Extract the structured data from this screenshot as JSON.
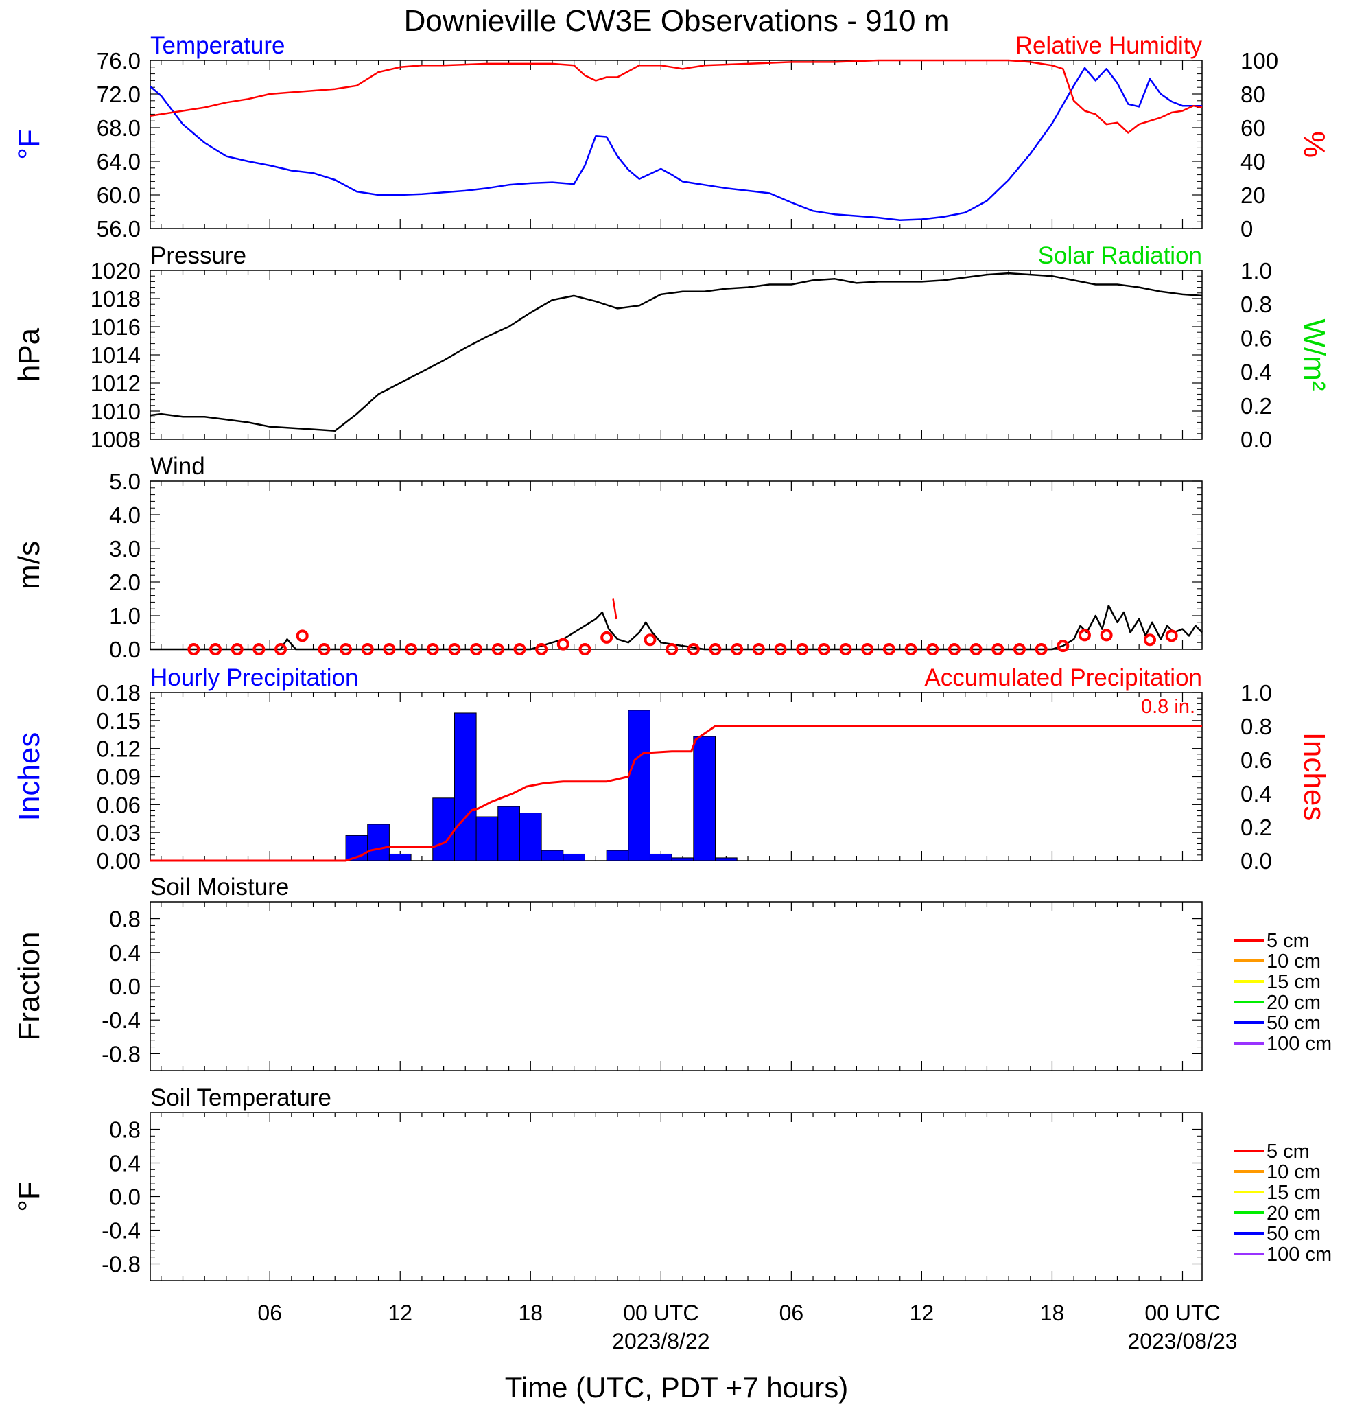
{
  "title": "Downieville CW3E Observations - 910 m",
  "xlabel": "Time (UTC, PDT +7 hours)",
  "x_ticks": [
    {
      "h": 6,
      "label": "06",
      "sub": ""
    },
    {
      "h": 12,
      "label": "12",
      "sub": ""
    },
    {
      "h": 18,
      "label": "18",
      "sub": ""
    },
    {
      "h": 24,
      "label": "00 UTC",
      "sub": "2023/8/22"
    },
    {
      "h": 30,
      "label": "06",
      "sub": ""
    },
    {
      "h": 36,
      "label": "12",
      "sub": ""
    },
    {
      "h": 42,
      "label": "18",
      "sub": ""
    },
    {
      "h": 48,
      "label": "00 UTC",
      "sub": "2023/08/23"
    }
  ],
  "colors": {
    "temperature": "#0000ff",
    "humidity": "#ff0000",
    "pressure": "#000000",
    "solar": "#00dd00",
    "wind": "#000000",
    "gust_marker": "#ff0000",
    "precip_bar": "#0000ff",
    "accum": "#ff0000"
  },
  "chart_data": [
    {
      "type": "line",
      "panel": "temperature-humidity",
      "left_title": "Temperature",
      "right_title": "Relative Humidity",
      "ylabel_left": "°F",
      "ylabel_right": "%",
      "xlim": [
        0.5,
        48.9
      ],
      "ylim_left": [
        56,
        76
      ],
      "ylim_right": [
        0,
        100
      ],
      "yticks_left": [
        "56.0",
        "60.0",
        "64.0",
        "68.0",
        "72.0",
        "76.0"
      ],
      "yticks_right": [
        "0",
        "20",
        "40",
        "60",
        "80",
        "100"
      ],
      "series": [
        {
          "name": "Temperature",
          "axis": "left",
          "x": [
            0.5,
            1,
            2,
            3,
            4,
            5,
            6,
            7,
            8,
            9,
            10,
            11,
            12,
            13,
            14,
            15,
            16,
            17,
            18,
            19,
            20,
            20.5,
            21,
            21.5,
            22,
            22.5,
            23,
            23.5,
            24,
            24.5,
            25,
            26,
            27,
            28,
            29,
            30,
            31,
            32,
            33,
            34,
            35,
            36,
            37,
            38,
            39,
            40,
            41,
            42,
            43,
            43.5,
            44,
            44.5,
            45,
            45.5,
            46,
            46.5,
            47,
            47.5,
            48,
            48.5,
            48.9
          ],
          "y": [
            72.9,
            71.8,
            68.4,
            66.2,
            64.6,
            64.0,
            63.5,
            62.9,
            62.6,
            61.8,
            60.4,
            60.0,
            60.0,
            60.1,
            60.3,
            60.5,
            60.8,
            61.2,
            61.4,
            61.5,
            61.3,
            63.5,
            67.0,
            66.9,
            64.6,
            63.0,
            61.9,
            62.5,
            63.1,
            62.4,
            61.6,
            61.2,
            60.8,
            60.5,
            60.2,
            59.1,
            58.1,
            57.7,
            57.5,
            57.3,
            57.0,
            57.1,
            57.4,
            57.9,
            59.3,
            61.8,
            64.9,
            68.5,
            73.0,
            75.1,
            73.6,
            75.0,
            73.3,
            70.8,
            70.5,
            73.8,
            72.0,
            71.1,
            70.6,
            70.6,
            70.6
          ]
        },
        {
          "name": "Relative Humidity",
          "axis": "right",
          "x": [
            0.5,
            1,
            2,
            3,
            4,
            5,
            6,
            7,
            8,
            9,
            10,
            11,
            12,
            13,
            14,
            16,
            18,
            19,
            20,
            20.5,
            21,
            21.5,
            22,
            23,
            24,
            24.5,
            25,
            26,
            28,
            30,
            32,
            34,
            36,
            38,
            40,
            41,
            42,
            42.5,
            43,
            43.5,
            44,
            44.5,
            45,
            45.5,
            46,
            46.5,
            47,
            47.5,
            48,
            48.5,
            48.9
          ],
          "y": [
            67,
            68,
            70,
            72,
            75,
            77,
            80,
            81,
            82,
            83,
            85,
            93,
            96,
            97,
            97,
            98,
            98,
            98,
            97,
            91,
            88,
            90,
            90,
            97,
            97,
            96,
            95,
            97,
            98,
            99,
            99,
            100,
            100,
            100,
            100,
            99,
            97,
            95,
            76,
            70,
            68,
            62,
            63,
            57,
            62,
            64,
            66,
            69,
            70,
            73,
            72
          ]
        }
      ]
    },
    {
      "type": "line",
      "panel": "pressure-solar",
      "left_title": "Pressure",
      "right_title": "Solar Radiation",
      "ylabel_left": "hPa",
      "ylabel_right": "W/m²",
      "xlim": [
        0.5,
        48.9
      ],
      "ylim_left": [
        1008,
        1020
      ],
      "ylim_right": [
        0,
        1
      ],
      "yticks_left": [
        "1008",
        "1010",
        "1012",
        "1014",
        "1016",
        "1018",
        "1020"
      ],
      "yticks_right": [
        "0.0",
        "0.2",
        "0.4",
        "0.6",
        "0.8",
        "1.0"
      ],
      "series": [
        {
          "name": "Pressure",
          "axis": "left",
          "x": [
            0.5,
            1,
            2,
            3,
            4,
            5,
            6,
            7,
            8,
            9,
            10,
            11,
            12,
            13,
            14,
            15,
            16,
            17,
            18,
            19,
            20,
            21,
            22,
            23,
            24,
            25,
            26,
            27,
            28,
            29,
            30,
            31,
            32,
            33,
            34,
            35,
            36,
            37,
            38,
            39,
            40,
            41,
            42,
            43,
            44,
            45,
            46,
            47,
            48,
            48.9
          ],
          "y": [
            1009.7,
            1009.8,
            1009.6,
            1009.6,
            1009.4,
            1009.2,
            1008.9,
            1008.8,
            1008.7,
            1008.6,
            1009.8,
            1011.2,
            1012.0,
            1012.8,
            1013.6,
            1014.5,
            1015.3,
            1016.0,
            1017.0,
            1017.9,
            1018.2,
            1017.8,
            1017.3,
            1017.5,
            1018.3,
            1018.5,
            1018.5,
            1018.7,
            1018.8,
            1019.0,
            1019.0,
            1019.3,
            1019.4,
            1019.1,
            1019.2,
            1019.2,
            1019.2,
            1019.3,
            1019.5,
            1019.7,
            1019.8,
            1019.7,
            1019.6,
            1019.3,
            1019.0,
            1019.0,
            1018.8,
            1018.5,
            1018.3,
            1018.2
          ]
        }
      ]
    },
    {
      "type": "line",
      "panel": "wind",
      "left_title": "Wind",
      "ylabel_left": "m/s",
      "xlim": [
        0.5,
        48.9
      ],
      "ylim_left": [
        0,
        5
      ],
      "yticks_left": [
        "0.0",
        "1.0",
        "2.0",
        "3.0",
        "4.0",
        "5.0"
      ],
      "series": [
        {
          "name": "Wind speed",
          "axis": "left",
          "x": [
            0.5,
            6.5,
            6.8,
            7.2,
            8,
            10,
            12,
            18,
            18.5,
            19,
            19.5,
            20,
            20.5,
            21,
            21.3,
            21.6,
            22,
            22.5,
            23,
            23.3,
            23.6,
            24,
            26,
            30,
            36,
            42,
            42.5,
            43,
            43.3,
            43.6,
            44,
            44.3,
            44.6,
            45,
            45.3,
            45.6,
            46,
            46.3,
            46.6,
            47,
            47.3,
            47.6,
            48,
            48.3,
            48.6,
            48.9
          ],
          "y": [
            0,
            0,
            0.3,
            0,
            0,
            0,
            0,
            0,
            0.1,
            0.2,
            0.3,
            0.5,
            0.7,
            0.9,
            1.1,
            0.6,
            0.3,
            0.2,
            0.5,
            0.8,
            0.5,
            0.2,
            0,
            0,
            0,
            0,
            0.1,
            0.3,
            0.7,
            0.5,
            1.0,
            0.6,
            1.3,
            0.8,
            1.1,
            0.5,
            0.9,
            0.4,
            0.8,
            0.3,
            0.7,
            0.5,
            0.6,
            0.4,
            0.7,
            0.5
          ]
        },
        {
          "name": "Hourly gust",
          "axis": "left",
          "style": "circles",
          "x": [
            2.5,
            3.5,
            4.5,
            5.5,
            6.5,
            7.5,
            8.5,
            9.5,
            10.5,
            11.5,
            12.5,
            13.5,
            14.5,
            15.5,
            16.5,
            17.5,
            18.5,
            19.5,
            20.5,
            21.5,
            22.5,
            23.5,
            24.5,
            25.5,
            26.5,
            27.5,
            28.5,
            29.5,
            30.5,
            31.5,
            32.5,
            33.5,
            34.5,
            35.5,
            36.5,
            37.5,
            38.5,
            39.5,
            40.5,
            41.5,
            42.5,
            43.5,
            44.5,
            45.5,
            46.5,
            47.5
          ],
          "y": [
            0,
            0,
            0,
            0,
            0,
            0.4,
            0,
            0,
            0,
            0,
            0,
            0,
            0,
            0,
            0,
            0,
            0,
            0.15,
            0,
            0.35,
            null,
            0.28,
            0,
            0,
            0,
            0,
            0,
            0,
            0,
            0,
            0,
            0,
            0,
            0,
            0,
            0,
            0,
            0,
            0,
            0,
            0.1,
            0.42,
            0.42,
            null,
            0.28,
            0.4
          ]
        },
        {
          "name": "Gust spike",
          "axis": "left",
          "x": [
            21.8,
            21.95
          ],
          "y": [
            1.5,
            0.9
          ]
        }
      ]
    },
    {
      "type": "bar",
      "panel": "precipitation",
      "left_title": "Hourly Precipitation",
      "right_title": "Accumulated Precipitation",
      "annotation": "0.8 in.",
      "ylabel_left": "Inches",
      "ylabel_right": "Inches",
      "xlim": [
        0.5,
        48.9
      ],
      "ylim_left": [
        0,
        0.18
      ],
      "ylim_right": [
        0,
        1
      ],
      "yticks_left": [
        "0.00",
        "0.03",
        "0.06",
        "0.09",
        "0.12",
        "0.15",
        "0.18"
      ],
      "yticks_right": [
        "0.0",
        "0.2",
        "0.4",
        "0.6",
        "0.8",
        "1.0"
      ],
      "bars": {
        "name": "Hourly Precipitation",
        "axis": "left",
        "x_start": [
          9.5,
          10.5,
          11.5,
          13.5,
          14.5,
          15.5,
          16.5,
          17.5,
          18.5,
          19.5,
          21.5,
          22.5,
          23.5,
          24.5,
          25.5,
          26.5
        ],
        "values": [
          0.027,
          0.039,
          0.007,
          0.067,
          0.158,
          0.047,
          0.058,
          0.051,
          0.011,
          0.007,
          0.011,
          0.161,
          0.007,
          0.003,
          0.133,
          0.003
        ]
      },
      "series": [
        {
          "name": "Accumulated Precipitation",
          "axis": "right",
          "x": [
            0.5,
            9.5,
            10.2,
            10.6,
            11.4,
            11.7,
            12.5,
            13.5,
            14.1,
            14.6,
            15.3,
            15.6,
            16.2,
            17.2,
            17.8,
            18.6,
            19.5,
            20.5,
            21.5,
            22.5,
            22.8,
            23.2,
            24.5,
            25.4,
            25.6,
            26.5,
            26.6,
            48.9
          ],
          "y": [
            0,
            0,
            0.03,
            0.06,
            0.08,
            0.08,
            0.08,
            0.08,
            0.11,
            0.2,
            0.3,
            0.31,
            0.35,
            0.4,
            0.44,
            0.46,
            0.47,
            0.47,
            0.47,
            0.5,
            0.6,
            0.64,
            0.65,
            0.65,
            0.72,
            0.8,
            0.8,
            0.8
          ]
        }
      ]
    },
    {
      "type": "line",
      "panel": "soil-moisture",
      "left_title": "Soil Moisture",
      "ylabel_left": "Fraction",
      "xlim": [
        0.5,
        48.9
      ],
      "ylim_left": [
        -1,
        1
      ],
      "yticks_left": [
        "-0.8",
        "-0.4",
        "0.0",
        "0.4",
        "0.8"
      ],
      "legend": [
        {
          "label": "5 cm",
          "color": "#ff0000"
        },
        {
          "label": "10 cm",
          "color": "#ff9900"
        },
        {
          "label": "15 cm",
          "color": "#ffff00"
        },
        {
          "label": "20 cm",
          "color": "#00ee00"
        },
        {
          "label": "50 cm",
          "color": "#0000ff"
        },
        {
          "label": "100 cm",
          "color": "#9933ff"
        }
      ],
      "series": []
    },
    {
      "type": "line",
      "panel": "soil-temperature",
      "left_title": "Soil Temperature",
      "ylabel_left": "°F",
      "xlim": [
        0.5,
        48.9
      ],
      "ylim_left": [
        -1,
        1
      ],
      "yticks_left": [
        "-0.8",
        "-0.4",
        "0.0",
        "0.4",
        "0.8"
      ],
      "legend": [
        {
          "label": "5 cm",
          "color": "#ff0000"
        },
        {
          "label": "10 cm",
          "color": "#ff9900"
        },
        {
          "label": "15 cm",
          "color": "#ffff00"
        },
        {
          "label": "20 cm",
          "color": "#00ee00"
        },
        {
          "label": "50 cm",
          "color": "#0000ff"
        },
        {
          "label": "100 cm",
          "color": "#9933ff"
        }
      ],
      "series": []
    }
  ]
}
